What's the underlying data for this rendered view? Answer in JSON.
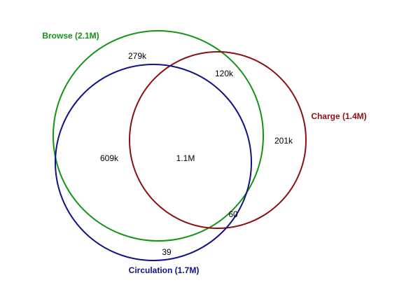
{
  "diagram": {
    "type": "venn",
    "sets": [
      {
        "id": "browse",
        "label": "Browse (2.1M)",
        "color": "#149414"
      },
      {
        "id": "circulation",
        "label": "Circulation (1.7M)",
        "color": "#111188"
      },
      {
        "id": "charge",
        "label": "Charge (1.4M)",
        "color": "#8b1111"
      }
    ],
    "regions": [
      {
        "id": "browse-only",
        "label": "279k"
      },
      {
        "id": "browse-charge",
        "label": "120k"
      },
      {
        "id": "charge-only",
        "label": "201k"
      },
      {
        "id": "browse-circulation",
        "label": "609k"
      },
      {
        "id": "all-three",
        "label": "1.1M"
      },
      {
        "id": "circulation-charge",
        "label": "60"
      },
      {
        "id": "circulation-only",
        "label": "39"
      }
    ]
  }
}
